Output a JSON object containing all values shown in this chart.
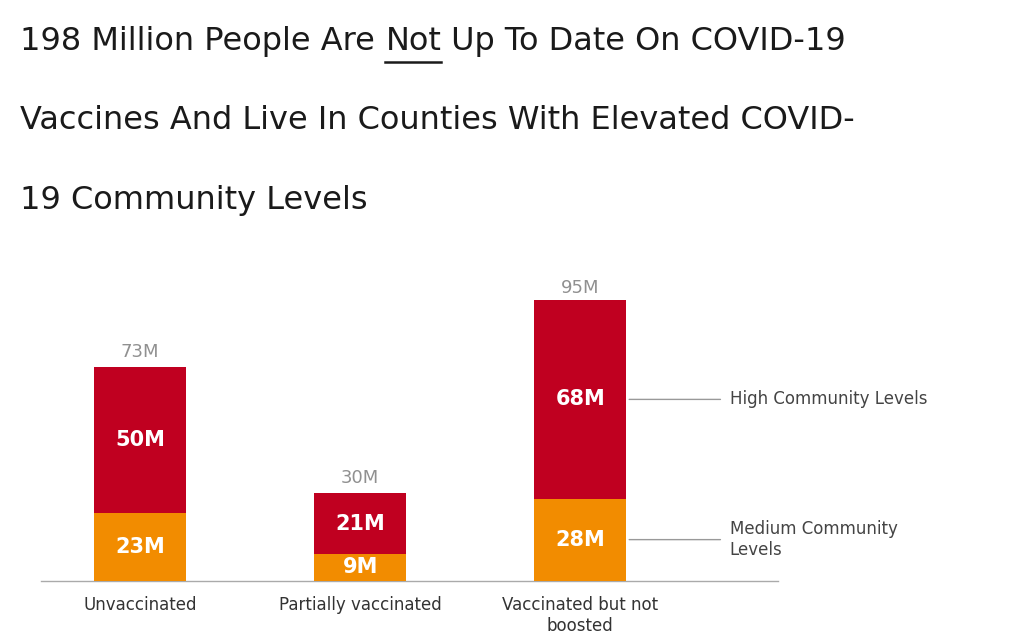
{
  "title_prefix": "198 Million People Are ",
  "title_not": "Not",
  "title_suffix": " Up To Date On COVID-19",
  "title_line2": "Vaccines And Live In Counties With Elevated COVID-",
  "title_line3": "19 Community Levels",
  "categories": [
    "Unvaccinated",
    "Partially vaccinated",
    "Vaccinated but not\nboosted"
  ],
  "medium_values": [
    23,
    9,
    28
  ],
  "high_values": [
    50,
    21,
    68
  ],
  "totals": [
    73,
    30,
    95
  ],
  "medium_color": "#F28C00",
  "high_color": "#C00020",
  "background_color": "#FFFFFF",
  "label_color_inside": "#FFFFFF",
  "label_color_total": "#909090",
  "legend_high": "High Community Levels",
  "legend_medium": "Medium Community\nLevels",
  "bar_width": 0.42,
  "ylim": [
    0,
    108
  ],
  "title_fontsize": 23,
  "label_fontsize": 15,
  "tick_fontsize": 12,
  "legend_fontsize": 12
}
